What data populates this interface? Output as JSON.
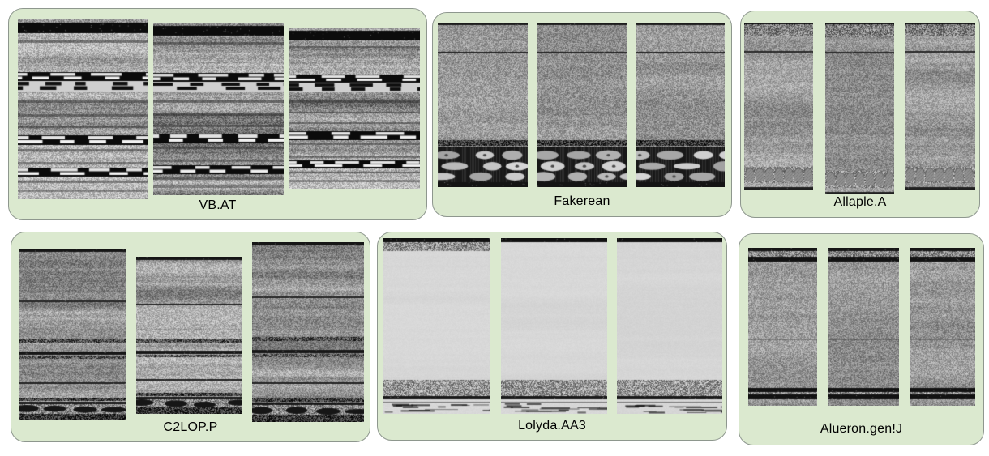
{
  "figure": {
    "panel_count": 6,
    "images_per_panel": 3
  },
  "colors": {
    "page_bg": "#ffffff",
    "panel_bg": "#dbe9cf",
    "panel_border": "#8e978e",
    "label_color": "#000000"
  },
  "panels": [
    {
      "label": "VB.AT"
    },
    {
      "label": "Fakerean"
    },
    {
      "label": "Allaple.A"
    },
    {
      "label": "C2LOP.P"
    },
    {
      "label": "Lolyda.AA3"
    },
    {
      "label": "Alueron.gen!J"
    }
  ],
  "textures": {
    "vbat": {
      "base": 148,
      "contrast": 92,
      "rowAmp": 30,
      "bands": [
        {
          "t": 0.02,
          "h": 0.058,
          "k": "solid",
          "c": "#0c0c0c"
        },
        {
          "t": 0.115,
          "h": 0.012,
          "k": "shade",
          "c": "#2e2e2e",
          "a": 0.5
        },
        {
          "t": 0.293,
          "h": 0.05,
          "k": "dashLight"
        },
        {
          "t": 0.343,
          "h": 0.058,
          "k": "dashDark"
        },
        {
          "t": 0.45,
          "h": 0.014,
          "k": "shade",
          "c": "#303030",
          "a": 0.55
        },
        {
          "t": 0.525,
          "h": 0.012,
          "k": "shade",
          "c": "#2a2a2a",
          "a": 0.5
        },
        {
          "t": 0.59,
          "h": 0.012,
          "k": "shade",
          "c": "#262626",
          "a": 0.5
        },
        {
          "t": 0.645,
          "h": 0.055,
          "k": "dashLight"
        },
        {
          "t": 0.72,
          "h": 0.012,
          "k": "shade",
          "c": "#2c2c2c",
          "a": 0.5
        },
        {
          "t": 0.793,
          "h": 0.013,
          "k": "shade",
          "c": "#2c2c2c",
          "a": 0.45
        },
        {
          "t": 0.825,
          "h": 0.05,
          "k": "dashLight"
        },
        {
          "t": 0.895,
          "h": 0.012,
          "k": "shade",
          "c": "#303030",
          "a": 0.5
        },
        {
          "t": 0.945,
          "h": 0.014,
          "k": "shade",
          "c": "#383838",
          "a": 0.45
        }
      ]
    },
    "fakerean": {
      "base": 150,
      "contrast": 85,
      "rowAmp": 8,
      "bands": [
        {
          "t": 0.0,
          "h": 0.012,
          "k": "solid",
          "c": "#1c1c1c"
        },
        {
          "t": 0.173,
          "h": 0.008,
          "k": "solid",
          "c": "#242424"
        },
        {
          "t": 0.715,
          "h": 0.037,
          "k": "speckle",
          "v": 55
        },
        {
          "t": 0.752,
          "h": 0.22,
          "k": "discs"
        },
        {
          "t": 0.972,
          "h": 0.028,
          "k": "solid",
          "c": "#141414"
        }
      ]
    },
    "allaple": {
      "base": 152,
      "contrast": 78,
      "rowAmp": 13,
      "bands": [
        {
          "t": 0.0,
          "h": 0.015,
          "k": "ticksTop"
        },
        {
          "t": 0.015,
          "h": 0.07,
          "k": "speckle",
          "v": 128
        },
        {
          "t": 0.17,
          "h": 0.008,
          "k": "solid",
          "c": "#2a2a2a"
        },
        {
          "t": 0.864,
          "h": 0.097,
          "k": "scallop"
        },
        {
          "t": 0.985,
          "h": 0.015,
          "k": "solid",
          "c": "#202020"
        }
      ]
    },
    "c2lop": {
      "base": 150,
      "contrast": 82,
      "rowAmp": 22,
      "bands": [
        {
          "t": 0.0,
          "h": 0.02,
          "k": "solid",
          "c": "#161616"
        },
        {
          "t": 0.3,
          "h": 0.008,
          "k": "solid",
          "c": "#262626"
        },
        {
          "t": 0.525,
          "h": 0.022,
          "k": "speckle",
          "v": 75
        },
        {
          "t": 0.6,
          "h": 0.02,
          "k": "solid",
          "c": "#181818"
        },
        {
          "t": 0.622,
          "h": 0.018,
          "k": "speckle",
          "v": 85
        },
        {
          "t": 0.778,
          "h": 0.01,
          "k": "solid",
          "c": "#222222"
        },
        {
          "t": 0.868,
          "h": 0.02,
          "k": "speckle",
          "v": 60
        },
        {
          "t": 0.89,
          "h": 0.016,
          "k": "solid",
          "c": "#1a1a1a"
        },
        {
          "t": 0.906,
          "h": 0.055,
          "k": "blobRow"
        },
        {
          "t": 0.961,
          "h": 0.039,
          "k": "speckle",
          "v": 50
        }
      ]
    },
    "lolyda": {
      "base": 214,
      "contrast": 7,
      "rowAmp": 2,
      "bands": [
        {
          "t": 0.0,
          "h": 0.022,
          "k": "solid",
          "c": "#111111"
        },
        {
          "t": 0.806,
          "h": 0.092,
          "k": "speckle",
          "v": 150
        },
        {
          "t": 0.898,
          "h": 0.02,
          "k": "solid",
          "c": "#1a1a1a"
        },
        {
          "t": 0.918,
          "h": 0.082,
          "k": "sparse"
        }
      ],
      "extras": {
        "lolydaTop": [
          {
            "t": 0.022,
            "h": 0.052,
            "k": "speckle",
            "v": 145
          }
        ]
      }
    },
    "alueron": {
      "base": 150,
      "contrast": 80,
      "rowAmp": 10,
      "bands": [
        {
          "t": 0.0,
          "h": 0.018,
          "k": "solid",
          "c": "#161616"
        },
        {
          "t": 0.018,
          "h": 0.04,
          "k": "speckle",
          "v": 135
        },
        {
          "t": 0.058,
          "h": 0.03,
          "k": "solid",
          "c": "#121212"
        },
        {
          "t": 0.22,
          "h": 0.006,
          "k": "shade",
          "c": "#3a3a3a",
          "a": 0.5
        },
        {
          "t": 0.58,
          "h": 0.006,
          "k": "shade",
          "c": "#3a3a3a",
          "a": 0.45
        },
        {
          "t": 0.887,
          "h": 0.028,
          "k": "solid",
          "c": "#121212"
        },
        {
          "t": 0.915,
          "h": 0.015,
          "k": "speckle",
          "v": 140
        },
        {
          "t": 0.93,
          "h": 0.032,
          "k": "solid",
          "c": "#121212"
        }
      ]
    }
  }
}
